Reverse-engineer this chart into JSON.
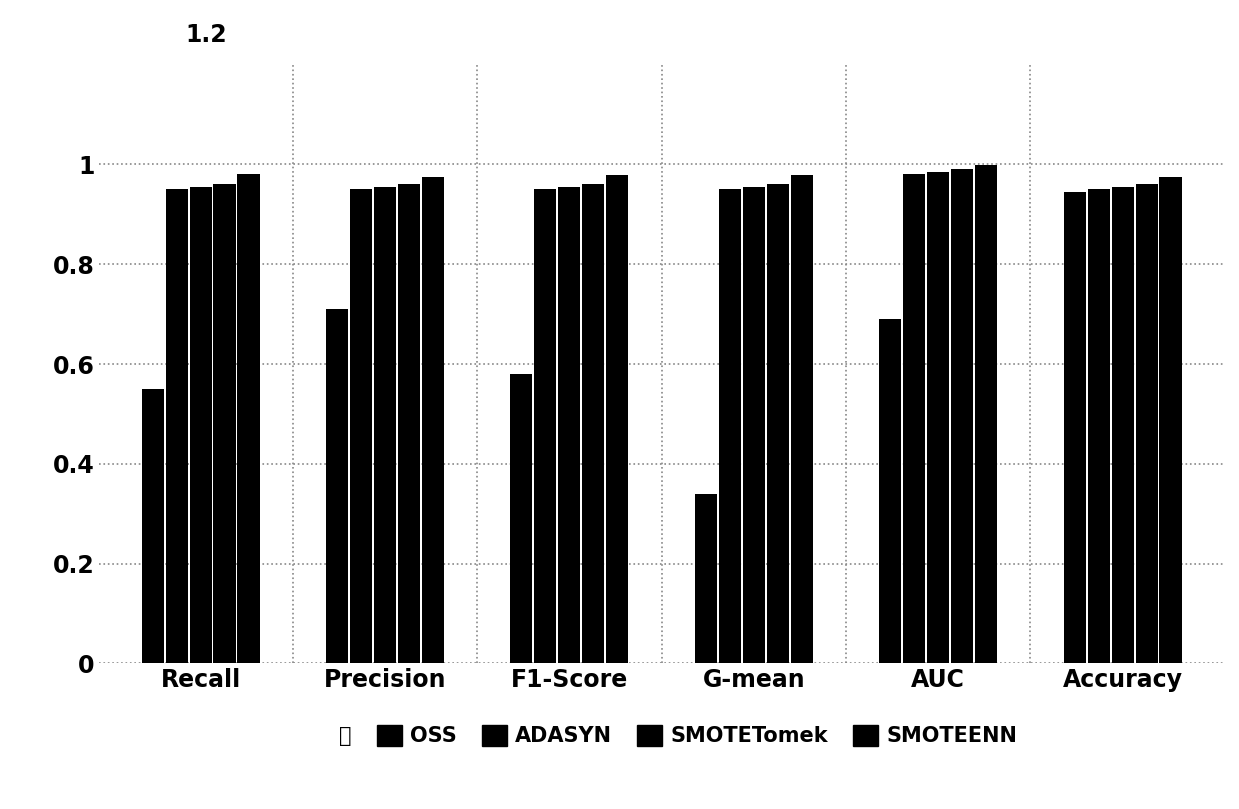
{
  "categories": [
    "Recall",
    "Precision",
    "F1-Score",
    "G-mean",
    "AUC",
    "Accuracy"
  ],
  "series": {
    "无": [
      0.55,
      0.71,
      0.58,
      0.34,
      0.69,
      0.945
    ],
    "OSS": [
      0.95,
      0.95,
      0.95,
      0.95,
      0.98,
      0.95
    ],
    "ADASYN": [
      0.955,
      0.955,
      0.955,
      0.955,
      0.985,
      0.955
    ],
    "SMOTETomek": [
      0.96,
      0.96,
      0.96,
      0.96,
      0.99,
      0.96
    ],
    "SMOTEENN": [
      0.98,
      0.975,
      0.978,
      0.978,
      0.998,
      0.975
    ]
  },
  "legend_labels": [
    "无",
    "OSS",
    "ADASYN",
    "SMOTETomek",
    "SMOTEENN"
  ],
  "bar_color": "#000000",
  "background_color": "#ffffff",
  "ylim": [
    0,
    1.2
  ],
  "yticks": [
    0,
    0.2,
    0.4,
    0.6,
    0.8,
    1.0,
    1.2
  ],
  "y_top_label": "1.2",
  "bar_width": 0.13,
  "legend_fontsize": 15,
  "tick_fontsize": 17,
  "category_fontsize": 17
}
